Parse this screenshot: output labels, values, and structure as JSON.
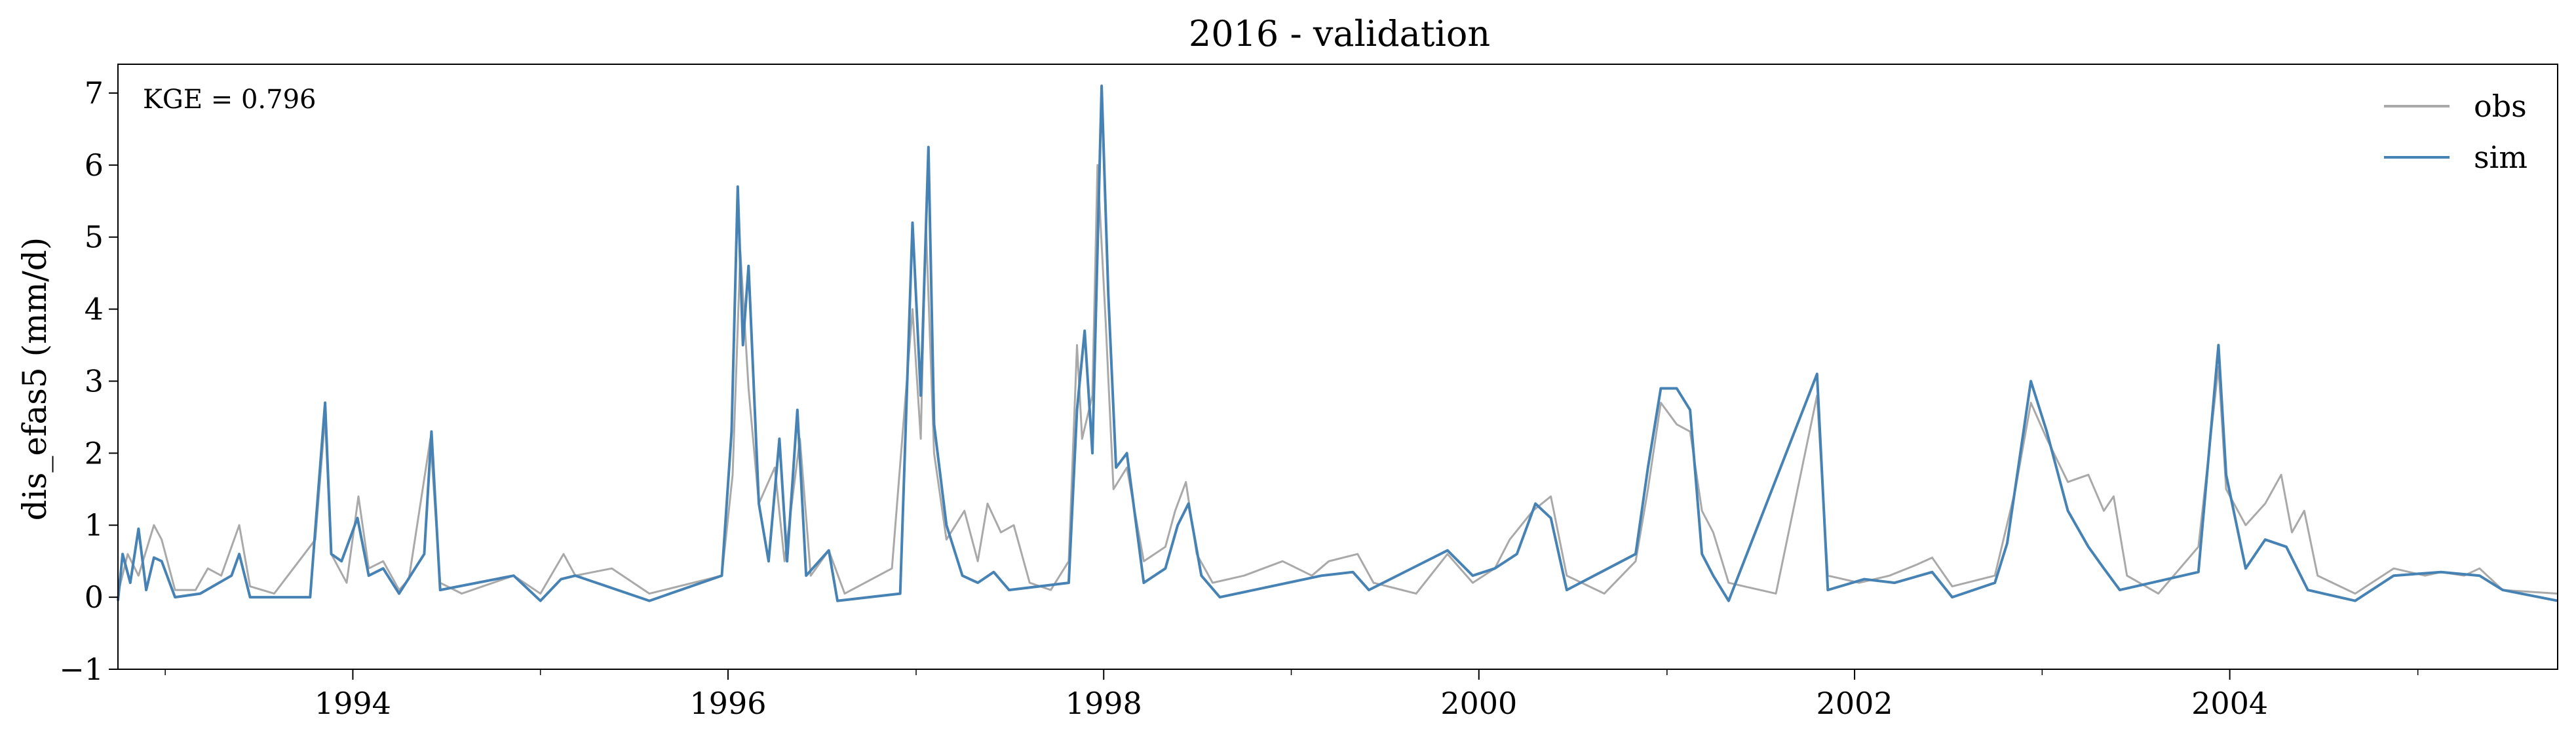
{
  "chart_data": {
    "type": "line",
    "title": "2016 - validation",
    "xlabel": "",
    "ylabel": "dis_efas5 (mm/d)",
    "annotation": "KGE = 0.796",
    "xlim": [
      "1992-10-01",
      "2005-09-30"
    ],
    "ylim": [
      -1,
      7.4
    ],
    "x_ticks": [
      "1994",
      "1996",
      "1998",
      "2000",
      "2002",
      "2004"
    ],
    "y_ticks": [
      "−1",
      "0",
      "1",
      "2",
      "3",
      "4",
      "5",
      "6",
      "7"
    ],
    "grid": false,
    "legend": {
      "position": "top-right"
    },
    "series": [
      {
        "name": "obs",
        "color": "#a9a9a9",
        "points": [
          [
            "1992-10-01",
            0.05
          ],
          [
            "1992-10-20",
            0.6
          ],
          [
            "1992-11-10",
            0.3
          ],
          [
            "1992-12-10",
            1.0
          ],
          [
            "1992-12-25",
            0.8
          ],
          [
            "1993-01-20",
            0.1
          ],
          [
            "1993-03-01",
            0.1
          ],
          [
            "1993-03-25",
            0.4
          ],
          [
            "1993-04-20",
            0.3
          ],
          [
            "1993-05-10",
            0.7
          ],
          [
            "1993-05-25",
            1.0
          ],
          [
            "1993-06-15",
            0.15
          ],
          [
            "1993-08-01",
            0.05
          ],
          [
            "1993-10-20",
            0.8
          ],
          [
            "1993-11-08",
            2.5
          ],
          [
            "1993-11-20",
            0.6
          ],
          [
            "1993-12-20",
            0.2
          ],
          [
            "1994-01-12",
            1.4
          ],
          [
            "1994-02-01",
            0.4
          ],
          [
            "1994-03-01",
            0.5
          ],
          [
            "1994-04-01",
            0.1
          ],
          [
            "1994-04-20",
            0.25
          ],
          [
            "1994-06-01",
            2.2
          ],
          [
            "1994-06-20",
            0.2
          ],
          [
            "1994-08-01",
            0.05
          ],
          [
            "1994-11-10",
            0.3
          ],
          [
            "1995-01-01",
            0.05
          ],
          [
            "1995-02-15",
            0.6
          ],
          [
            "1995-03-10",
            0.3
          ],
          [
            "1995-05-20",
            0.4
          ],
          [
            "1995-08-01",
            0.05
          ],
          [
            "1995-12-20",
            0.3
          ],
          [
            "1996-01-10",
            1.7
          ],
          [
            "1996-01-25",
            4.8
          ],
          [
            "1996-02-10",
            2.9
          ],
          [
            "1996-03-01",
            1.3
          ],
          [
            "1996-04-01",
            1.8
          ],
          [
            "1996-04-20",
            0.5
          ],
          [
            "1996-05-20",
            2.2
          ],
          [
            "1996-06-10",
            0.3
          ],
          [
            "1996-07-15",
            0.65
          ],
          [
            "1996-08-15",
            0.05
          ],
          [
            "1996-11-15",
            0.4
          ],
          [
            "1996-12-25",
            4.0
          ],
          [
            "1997-01-10",
            2.2
          ],
          [
            "1997-01-20",
            5.2
          ],
          [
            "1997-02-05",
            2.0
          ],
          [
            "1997-03-01",
            0.8
          ],
          [
            "1997-04-05",
            1.2
          ],
          [
            "1997-05-01",
            0.5
          ],
          [
            "1997-05-20",
            1.3
          ],
          [
            "1997-06-15",
            0.9
          ],
          [
            "1997-07-10",
            1.0
          ],
          [
            "1997-08-10",
            0.2
          ],
          [
            "1997-09-20",
            0.1
          ],
          [
            "1997-10-25",
            0.5
          ],
          [
            "1997-11-10",
            3.5
          ],
          [
            "1997-11-20",
            2.2
          ],
          [
            "1997-12-10",
            2.8
          ],
          [
            "1997-12-20",
            6.0
          ],
          [
            "1998-01-05",
            3.8
          ],
          [
            "1998-01-20",
            1.5
          ],
          [
            "1998-02-15",
            1.8
          ],
          [
            "1998-03-20",
            0.5
          ],
          [
            "1998-05-01",
            0.7
          ],
          [
            "1998-05-20",
            1.2
          ],
          [
            "1998-06-10",
            1.6
          ],
          [
            "1998-07-01",
            0.6
          ],
          [
            "1998-08-01",
            0.2
          ],
          [
            "1998-10-01",
            0.3
          ],
          [
            "1998-12-15",
            0.5
          ],
          [
            "1999-02-10",
            0.3
          ],
          [
            "1999-03-15",
            0.5
          ],
          [
            "1999-05-10",
            0.6
          ],
          [
            "1999-06-10",
            0.2
          ],
          [
            "1999-09-01",
            0.05
          ],
          [
            "1999-11-01",
            0.6
          ],
          [
            "1999-12-20",
            0.2
          ],
          [
            "2000-02-01",
            0.4
          ],
          [
            "2000-03-01",
            0.8
          ],
          [
            "2000-04-15",
            1.2
          ],
          [
            "2000-05-20",
            1.4
          ],
          [
            "2000-06-20",
            0.3
          ],
          [
            "2000-09-01",
            0.05
          ],
          [
            "2000-11-01",
            0.5
          ],
          [
            "2000-11-25",
            1.5
          ],
          [
            "2000-12-20",
            2.7
          ],
          [
            "2001-01-20",
            2.4
          ],
          [
            "2001-02-15",
            2.3
          ],
          [
            "2001-03-10",
            1.2
          ],
          [
            "2001-04-01",
            0.9
          ],
          [
            "2001-05-01",
            0.2
          ],
          [
            "2001-08-01",
            0.05
          ],
          [
            "2001-10-20",
            2.8
          ],
          [
            "2001-11-10",
            0.3
          ],
          [
            "2002-01-10",
            0.2
          ],
          [
            "2002-03-10",
            0.3
          ],
          [
            "2002-05-01",
            0.45
          ],
          [
            "2002-06-01",
            0.55
          ],
          [
            "2002-07-10",
            0.15
          ],
          [
            "2002-10-01",
            0.3
          ],
          [
            "2002-11-10",
            1.5
          ],
          [
            "2002-12-10",
            2.7
          ],
          [
            "2003-01-10",
            2.2
          ],
          [
            "2003-02-20",
            1.6
          ],
          [
            "2003-04-01",
            1.7
          ],
          [
            "2003-05-01",
            1.2
          ],
          [
            "2003-05-20",
            1.4
          ],
          [
            "2003-06-15",
            0.3
          ],
          [
            "2003-08-15",
            0.05
          ],
          [
            "2003-11-01",
            0.7
          ],
          [
            "2003-12-10",
            3.2
          ],
          [
            "2003-12-25",
            1.5
          ],
          [
            "2004-02-01",
            1.0
          ],
          [
            "2004-03-10",
            1.3
          ],
          [
            "2004-04-10",
            1.7
          ],
          [
            "2004-05-01",
            0.9
          ],
          [
            "2004-05-25",
            1.2
          ],
          [
            "2004-06-20",
            0.3
          ],
          [
            "2004-09-01",
            0.05
          ],
          [
            "2004-11-15",
            0.4
          ],
          [
            "2005-01-15",
            0.3
          ],
          [
            "2005-02-15",
            0.35
          ],
          [
            "2005-04-01",
            0.3
          ],
          [
            "2005-05-01",
            0.4
          ],
          [
            "2005-06-15",
            0.1
          ],
          [
            "2005-09-30",
            0.05
          ]
        ]
      },
      {
        "name": "sim",
        "color": "#4682b4",
        "points": [
          [
            "1992-10-01",
            -0.05
          ],
          [
            "1992-10-10",
            0.6
          ],
          [
            "1992-10-25",
            0.2
          ],
          [
            "1992-11-10",
            0.95
          ],
          [
            "1992-11-25",
            0.1
          ],
          [
            "1992-12-10",
            0.55
          ],
          [
            "1992-12-25",
            0.5
          ],
          [
            "1993-01-20",
            0.0
          ],
          [
            "1993-03-10",
            0.05
          ],
          [
            "1993-05-10",
            0.3
          ],
          [
            "1993-05-25",
            0.6
          ],
          [
            "1993-06-15",
            0.0
          ],
          [
            "1993-10-10",
            0.0
          ],
          [
            "1993-10-20",
            0.95
          ],
          [
            "1993-11-08",
            2.7
          ],
          [
            "1993-11-20",
            0.6
          ],
          [
            "1993-12-10",
            0.5
          ],
          [
            "1994-01-10",
            1.1
          ],
          [
            "1994-02-01",
            0.3
          ],
          [
            "1994-03-01",
            0.4
          ],
          [
            "1994-04-01",
            0.05
          ],
          [
            "1994-05-20",
            0.6
          ],
          [
            "1994-06-03",
            2.3
          ],
          [
            "1994-06-20",
            0.1
          ],
          [
            "1994-11-10",
            0.3
          ],
          [
            "1995-01-01",
            -0.05
          ],
          [
            "1995-02-10",
            0.25
          ],
          [
            "1995-03-10",
            0.3
          ],
          [
            "1995-08-01",
            -0.05
          ],
          [
            "1995-12-20",
            0.3
          ],
          [
            "1996-01-08",
            2.3
          ],
          [
            "1996-01-20",
            5.7
          ],
          [
            "1996-01-30",
            3.5
          ],
          [
            "1996-02-10",
            4.6
          ],
          [
            "1996-03-01",
            1.3
          ],
          [
            "1996-03-20",
            0.5
          ],
          [
            "1996-04-10",
            2.2
          ],
          [
            "1996-04-25",
            0.5
          ],
          [
            "1996-05-15",
            2.6
          ],
          [
            "1996-06-01",
            0.3
          ],
          [
            "1996-07-15",
            0.65
          ],
          [
            "1996-08-01",
            -0.05
          ],
          [
            "1996-12-01",
            0.05
          ],
          [
            "1996-12-25",
            5.2
          ],
          [
            "1997-01-10",
            2.8
          ],
          [
            "1997-01-25",
            6.25
          ],
          [
            "1997-02-05",
            2.4
          ],
          [
            "1997-03-01",
            1.0
          ],
          [
            "1997-04-01",
            0.3
          ],
          [
            "1997-05-01",
            0.2
          ],
          [
            "1997-06-01",
            0.35
          ],
          [
            "1997-07-01",
            0.1
          ],
          [
            "1997-10-25",
            0.2
          ],
          [
            "1997-11-10",
            2.6
          ],
          [
            "1997-11-25",
            3.7
          ],
          [
            "1997-12-10",
            2.0
          ],
          [
            "1997-12-28",
            7.1
          ],
          [
            "1998-01-10",
            4.2
          ],
          [
            "1998-01-25",
            1.8
          ],
          [
            "1998-02-15",
            2.0
          ],
          [
            "1998-03-20",
            0.2
          ],
          [
            "1998-05-01",
            0.4
          ],
          [
            "1998-05-25",
            1.0
          ],
          [
            "1998-06-15",
            1.3
          ],
          [
            "1998-07-10",
            0.3
          ],
          [
            "1998-08-15",
            0.0
          ],
          [
            "1999-03-01",
            0.3
          ],
          [
            "1999-05-01",
            0.35
          ],
          [
            "1999-06-01",
            0.1
          ],
          [
            "1999-11-01",
            0.65
          ],
          [
            "1999-12-20",
            0.3
          ],
          [
            "2000-02-01",
            0.4
          ],
          [
            "2000-03-15",
            0.6
          ],
          [
            "2000-04-20",
            1.3
          ],
          [
            "2000-05-20",
            1.1
          ],
          [
            "2000-06-20",
            0.1
          ],
          [
            "2000-11-01",
            0.6
          ],
          [
            "2000-11-25",
            1.8
          ],
          [
            "2000-12-20",
            2.9
          ],
          [
            "2001-01-20",
            2.9
          ],
          [
            "2001-02-15",
            2.6
          ],
          [
            "2001-03-10",
            0.6
          ],
          [
            "2001-04-01",
            0.3
          ],
          [
            "2001-05-01",
            -0.05
          ],
          [
            "2001-10-20",
            3.1
          ],
          [
            "2001-11-10",
            0.1
          ],
          [
            "2002-01-20",
            0.25
          ],
          [
            "2002-03-20",
            0.2
          ],
          [
            "2002-06-01",
            0.35
          ],
          [
            "2002-07-10",
            0.0
          ],
          [
            "2002-10-01",
            0.2
          ],
          [
            "2002-10-25",
            0.75
          ],
          [
            "2002-12-10",
            3.0
          ],
          [
            "2003-01-10",
            2.3
          ],
          [
            "2003-02-20",
            1.2
          ],
          [
            "2003-04-01",
            0.7
          ],
          [
            "2003-05-01",
            0.4
          ],
          [
            "2003-06-01",
            0.1
          ],
          [
            "2003-11-01",
            0.35
          ],
          [
            "2003-12-10",
            3.5
          ],
          [
            "2003-12-25",
            1.7
          ],
          [
            "2004-02-01",
            0.4
          ],
          [
            "2004-03-10",
            0.8
          ],
          [
            "2004-04-20",
            0.7
          ],
          [
            "2004-06-01",
            0.1
          ],
          [
            "2004-09-01",
            -0.05
          ],
          [
            "2004-11-15",
            0.3
          ],
          [
            "2005-02-15",
            0.35
          ],
          [
            "2005-05-01",
            0.3
          ],
          [
            "2005-06-15",
            0.1
          ],
          [
            "2005-09-30",
            -0.05
          ]
        ]
      }
    ]
  }
}
